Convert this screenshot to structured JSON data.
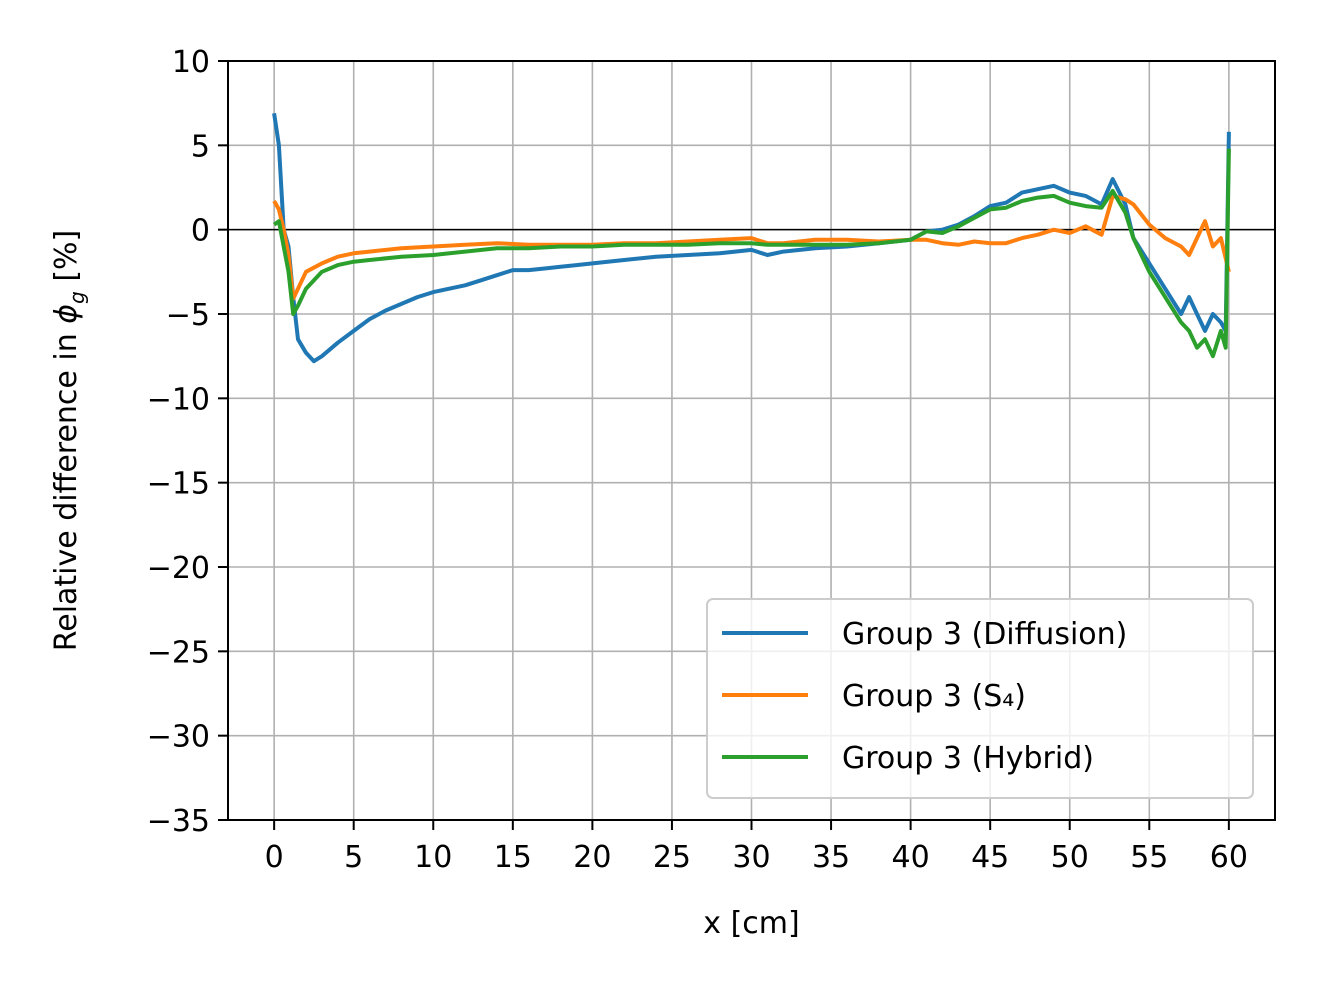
{
  "chart_data": {
    "type": "line",
    "title": "",
    "xlabel": "x [cm]",
    "ylabel_prefix": "Relative difference in ",
    "ylabel_symbol": "ϕ",
    "ylabel_subscript": "g",
    "ylabel_suffix": " [%]",
    "xlim": [
      -2.9,
      62.9
    ],
    "ylim": [
      -35,
      10
    ],
    "xticks": [
      0,
      5,
      10,
      15,
      20,
      25,
      30,
      35,
      40,
      45,
      50,
      55,
      60
    ],
    "yticks": [
      10,
      5,
      0,
      -5,
      -10,
      -15,
      -20,
      -25,
      -30,
      -35
    ],
    "xtick_labels": [
      "0",
      "5",
      "10",
      "15",
      "20",
      "25",
      "30",
      "35",
      "40",
      "45",
      "50",
      "55",
      "60"
    ],
    "ytick_labels": [
      "10",
      "5",
      "0",
      "−5",
      "−10",
      "−15",
      "−20",
      "−25",
      "−30",
      "−35"
    ],
    "grid": true,
    "reference_line_y": 0,
    "legend_position": "lower-right",
    "series": [
      {
        "name": "Group 3 (Diffusion)",
        "color": "#1f77b4",
        "x": [
          0,
          0.3,
          0.6,
          0.9,
          1.2,
          1.5,
          2.0,
          2.5,
          3.0,
          4.0,
          5.0,
          6.0,
          7.0,
          8.0,
          9.0,
          10.0,
          11.0,
          12.0,
          13.0,
          14.0,
          15.0,
          16.0,
          17.0,
          18.0,
          19.0,
          20.0,
          22.0,
          24.0,
          26.0,
          28.0,
          30.0,
          31.0,
          32.0,
          34.0,
          36.0,
          38.0,
          40.0,
          41.0,
          42.0,
          43.0,
          44.0,
          45.0,
          46.0,
          47.0,
          48.0,
          49.0,
          50.0,
          51.0,
          52.0,
          52.7,
          53.5,
          54.0,
          55.0,
          56.0,
          57.0,
          57.5,
          58.0,
          58.5,
          59.0,
          59.5,
          59.8,
          60.0
        ],
        "y": [
          6.9,
          5.0,
          0.0,
          -1.0,
          -4.0,
          -6.5,
          -7.3,
          -7.8,
          -7.5,
          -6.7,
          -6.0,
          -5.3,
          -4.8,
          -4.4,
          -4.0,
          -3.7,
          -3.5,
          -3.3,
          -3.0,
          -2.7,
          -2.4,
          -2.4,
          -2.3,
          -2.2,
          -2.1,
          -2.0,
          -1.8,
          -1.6,
          -1.5,
          -1.4,
          -1.2,
          -1.5,
          -1.3,
          -1.1,
          -1.0,
          -0.8,
          -0.6,
          -0.1,
          0.0,
          0.3,
          0.8,
          1.4,
          1.6,
          2.2,
          2.4,
          2.6,
          2.2,
          2.0,
          1.5,
          3.0,
          1.5,
          -0.5,
          -2.0,
          -3.5,
          -5.0,
          -4.0,
          -5.0,
          -6.0,
          -5.0,
          -5.5,
          -6.0,
          5.8
        ]
      },
      {
        "name": "Group 3 (S₄)",
        "color": "#ff7f0e",
        "x": [
          0,
          0.3,
          0.6,
          0.9,
          1.2,
          1.5,
          2.0,
          3.0,
          4.0,
          5.0,
          6.0,
          8.0,
          10.0,
          12.0,
          14.0,
          16.0,
          18.0,
          20.0,
          22.0,
          24.0,
          26.0,
          28.0,
          30.0,
          31.0,
          32.0,
          34.0,
          36.0,
          38.0,
          40.0,
          41.0,
          42.0,
          43.0,
          44.0,
          45.0,
          46.0,
          47.0,
          48.0,
          49.0,
          50.0,
          51.0,
          52.0,
          52.7,
          53.5,
          54.0,
          55.0,
          56.0,
          57.0,
          57.5,
          58.0,
          58.5,
          59.0,
          59.5,
          60.0
        ],
        "y": [
          1.7,
          1.2,
          0.0,
          -1.5,
          -4.1,
          -3.5,
          -2.5,
          -2.0,
          -1.6,
          -1.4,
          -1.3,
          -1.1,
          -1.0,
          -0.9,
          -0.8,
          -0.9,
          -0.9,
          -0.9,
          -0.8,
          -0.8,
          -0.7,
          -0.6,
          -0.5,
          -0.8,
          -0.8,
          -0.6,
          -0.6,
          -0.7,
          -0.6,
          -0.6,
          -0.8,
          -0.9,
          -0.7,
          -0.8,
          -0.8,
          -0.5,
          -0.3,
          0.0,
          -0.2,
          0.2,
          -0.3,
          2.0,
          1.8,
          1.5,
          0.3,
          -0.5,
          -1.0,
          -1.5,
          -0.5,
          0.5,
          -1.0,
          -0.5,
          -2.5
        ]
      },
      {
        "name": "Group 3 (Hybrid)",
        "color": "#2ca02c",
        "x": [
          0,
          0.3,
          0.6,
          0.9,
          1.2,
          1.5,
          2.0,
          3.0,
          4.0,
          5.0,
          6.0,
          8.0,
          10.0,
          12.0,
          14.0,
          16.0,
          18.0,
          20.0,
          22.0,
          24.0,
          26.0,
          28.0,
          30.0,
          31.0,
          32.0,
          34.0,
          36.0,
          38.0,
          40.0,
          41.0,
          42.0,
          43.0,
          44.0,
          45.0,
          46.0,
          47.0,
          48.0,
          49.0,
          50.0,
          51.0,
          52.0,
          52.7,
          53.5,
          54.0,
          55.0,
          56.0,
          57.0,
          57.5,
          58.0,
          58.5,
          59.0,
          59.5,
          59.8,
          60.0
        ],
        "y": [
          0.3,
          0.5,
          -1.0,
          -2.5,
          -5.0,
          -4.5,
          -3.5,
          -2.5,
          -2.1,
          -1.9,
          -1.8,
          -1.6,
          -1.5,
          -1.3,
          -1.1,
          -1.1,
          -1.0,
          -1.0,
          -0.9,
          -0.9,
          -0.9,
          -0.8,
          -0.8,
          -0.9,
          -0.9,
          -0.9,
          -0.9,
          -0.8,
          -0.6,
          -0.1,
          -0.2,
          0.2,
          0.7,
          1.2,
          1.3,
          1.7,
          1.9,
          2.0,
          1.6,
          1.4,
          1.3,
          2.3,
          1.0,
          -0.5,
          -2.5,
          -4.0,
          -5.5,
          -6.0,
          -7.0,
          -6.5,
          -7.5,
          -6.0,
          -7.0,
          4.8
        ]
      }
    ]
  }
}
